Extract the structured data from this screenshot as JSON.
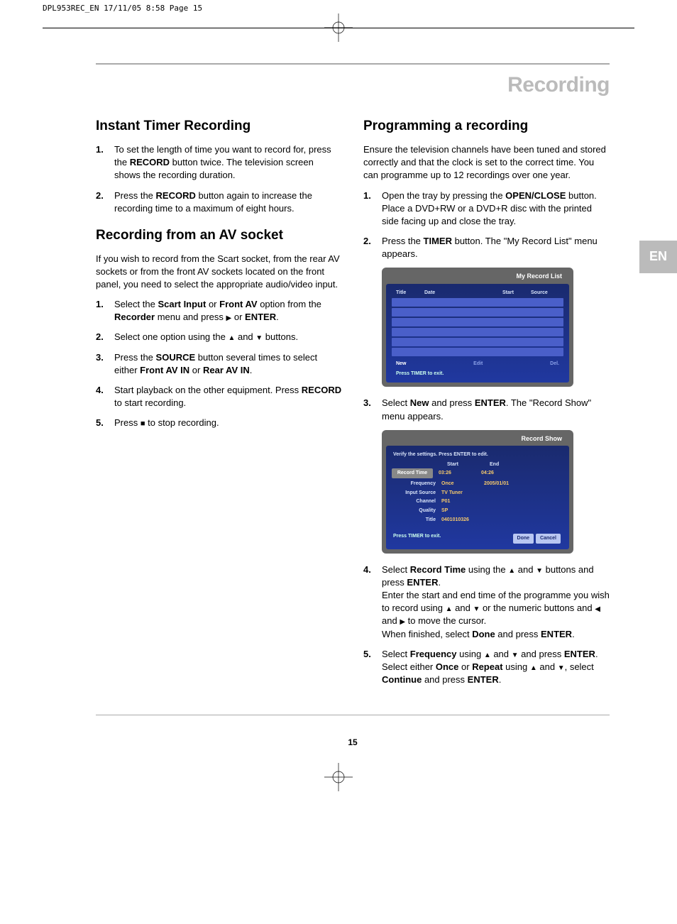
{
  "crop_header": "DPL953REC_EN  17/11/05  8:58  Page 15",
  "page_title": "Recording",
  "lang_tab": "EN",
  "page_number": "15",
  "left_col": {
    "h1": "Instant Timer Recording",
    "steps1": [
      {
        "pre": "To set the length of time you want to record for, press the ",
        "b1": "RECORD",
        "post": " button twice. The television screen shows the recording duration."
      },
      {
        "pre": "Press the ",
        "b1": "RECORD",
        "post": " button again to increase the recording time to a maximum of eight hours."
      }
    ],
    "h2": "Recording from an AV socket",
    "intro2": "If you wish to record from the Scart socket, from the rear AV sockets or from the front AV sockets located on the front panel, you need to select the appropriate audio/video input.",
    "steps2": [
      {
        "text": "Select the <strong>Scart Input</strong> or <strong>Front AV</strong> option from the <strong>Recorder</strong> menu and press <span class='arrow-right'></span> or <strong>ENTER</strong>."
      },
      {
        "text": "Select one option using the <span class='arrow-up'></span> and <span class='arrow-down'></span> buttons."
      },
      {
        "text": "Press the <strong>SOURCE</strong> button several times to select either <strong>Front AV IN</strong> or <strong>Rear AV IN</strong>."
      },
      {
        "text": "Start playback on the other equipment. Press <strong>RECORD</strong> to start recording."
      },
      {
        "text": "Press <span class='stop-square'></span> to stop recording."
      }
    ]
  },
  "right_col": {
    "h1": "Programming a recording",
    "intro": "Ensure the television channels have been tuned and stored correctly and that the clock is set to the correct time. You can programme up to 12 recordings over one year.",
    "steps": [
      {
        "text": "Open the tray by pressing the <strong>OPEN/CLOSE</strong> button. Place a DVD+RW or a DVD+R disc with the printed side facing up and close the tray."
      },
      {
        "text": "Press the <strong>TIMER</strong> button. The \"My Record List\" menu appears."
      },
      {
        "text": "Select <strong>New</strong> and press <strong>ENTER</strong>. The \"Record Show\" menu appears."
      },
      {
        "text": "Select <strong>Record Time</strong> using the <span class='arrow-up'></span> and <span class='arrow-down'></span> buttons and press <strong>ENTER</strong>.<br>Enter the start and end time of the programme you wish to record using <span class='arrow-up'></span> and <span class='arrow-down'></span> or the numeric buttons and <span class='arrow-left'></span> and <span class='arrow-right'></span> to move the cursor.<br>When finished, select <strong>Done</strong> and press <strong>ENTER</strong>."
      },
      {
        "text": "Select <strong>Frequency</strong> using <span class='arrow-up'></span> and <span class='arrow-down'></span> and press <strong>ENTER</strong>.<br>Select either <strong>Once</strong> or <strong>Repeat</strong> using <span class='arrow-up'></span> and <span class='arrow-down'></span>, select <strong>Continue</strong> and press <strong>ENTER</strong>."
      }
    ]
  },
  "ui1": {
    "title": "My Record List",
    "cols": [
      "Title",
      "Date",
      "Start",
      "Source"
    ],
    "actions": [
      "New",
      "Edit",
      "Del."
    ],
    "footer": "Press TIMER to exit."
  },
  "ui2": {
    "title": "Record Show",
    "verify": "Verify the settings. Press ENTER to edit.",
    "header": [
      "",
      "Start",
      "End"
    ],
    "rows": [
      {
        "label": "Record Time",
        "btn": true,
        "v1": "03:26",
        "v2": "04:26"
      },
      {
        "label": "Frequency",
        "v1": "Once",
        "v2": "2005/01/01"
      },
      {
        "label": "Input Source",
        "v1": "TV Tuner",
        "v2": ""
      },
      {
        "label": "Channel",
        "v1": "P01",
        "v2": ""
      },
      {
        "label": "Quality",
        "v1": "SP",
        "v2": ""
      },
      {
        "label": "Title",
        "v1": "0401010326",
        "v2": ""
      }
    ],
    "exit": "Press TIMER to exit.",
    "buttons": [
      "Done",
      "Cancel"
    ]
  }
}
